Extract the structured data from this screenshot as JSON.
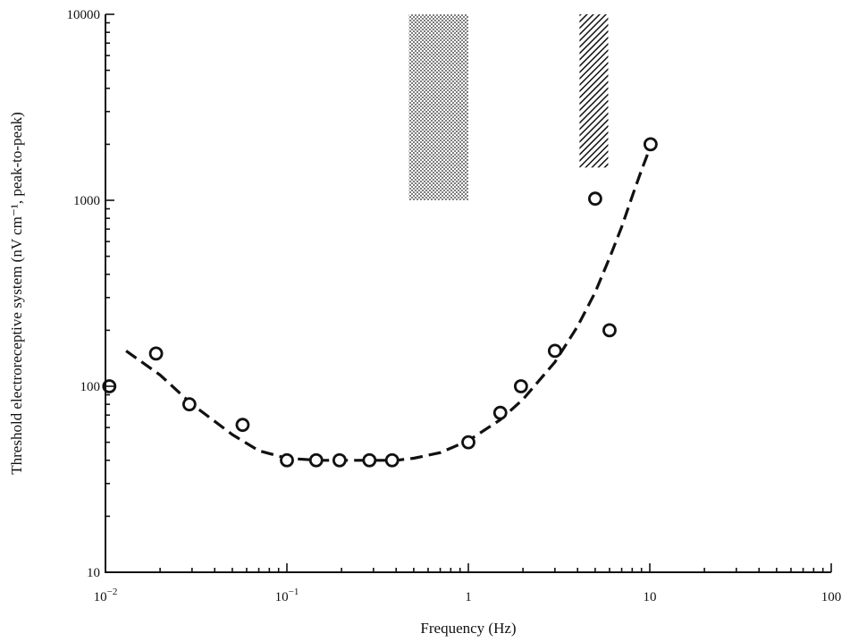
{
  "chart_data": {
    "type": "scatter",
    "xlabel": "Frequency (Hz)",
    "ylabel": "Threshold electroreceptive system (nV cm⁻¹, peak-to-peak)",
    "x_scale": "log",
    "y_scale": "log",
    "xlim": [
      0.01,
      100
    ],
    "ylim": [
      10,
      10000
    ],
    "x_ticks": [
      {
        "value": 0.01,
        "base": "10",
        "exp": "−2"
      },
      {
        "value": 0.1,
        "base": "10",
        "exp": "−1"
      },
      {
        "value": 1,
        "base": "1",
        "exp": ""
      },
      {
        "value": 10,
        "base": "10",
        "exp": ""
      },
      {
        "value": 100,
        "base": "100",
        "exp": ""
      }
    ],
    "y_ticks": [
      {
        "value": 10,
        "label": "10"
      },
      {
        "value": 100,
        "label": "100"
      },
      {
        "value": 1000,
        "label": "1000"
      },
      {
        "value": 10000,
        "label": "10000"
      }
    ],
    "grid": false,
    "series": [
      {
        "kind": "points",
        "marker": "open-circle",
        "x": [
          0.0105,
          0.019,
          0.029,
          0.057,
          0.1,
          0.145,
          0.195,
          0.285,
          0.38,
          1.0,
          1.5,
          1.95,
          3.0,
          5.0,
          6.0,
          10.1
        ],
        "y": [
          100,
          150,
          80,
          62,
          40,
          40,
          40,
          40,
          40,
          50,
          72,
          100,
          155,
          1020,
          200,
          2000
        ]
      },
      {
        "kind": "fit",
        "style": "dashed",
        "x": [
          0.013,
          0.02,
          0.03,
          0.05,
          0.07,
          0.1,
          0.15,
          0.2,
          0.3,
          0.4,
          0.5,
          0.7,
          1.0,
          1.5,
          2.0,
          3.0,
          4.0,
          5.0,
          6.0,
          7.0,
          8.0,
          9.0,
          10.0
        ],
        "y": [
          155,
          115,
          80,
          55,
          45,
          41,
          40,
          40,
          40,
          40,
          41,
          44,
          51,
          66,
          85,
          135,
          210,
          320,
          490,
          720,
          1050,
          1450,
          1900
        ]
      }
    ],
    "regions": [
      {
        "pattern": "dotted",
        "x": [
          0.47,
          1.0
        ],
        "y": [
          1000,
          10000
        ]
      },
      {
        "pattern": "hatched",
        "x": [
          4.1,
          5.9
        ],
        "y": [
          1500,
          10000
        ]
      }
    ]
  }
}
